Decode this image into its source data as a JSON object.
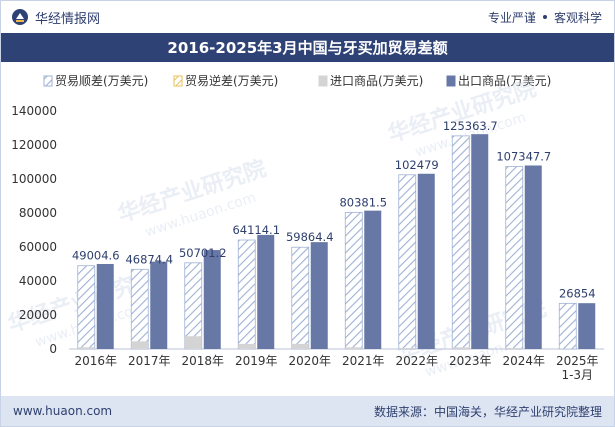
{
  "header": {
    "brand": "华经情报网",
    "tagline_left": "专业严谨",
    "tagline_right": "客观科学",
    "colors": {
      "brand": "#2e4276",
      "accent": "#2e3f6e"
    }
  },
  "footer": {
    "url": "www.huaon.com",
    "source": "数据来源：中国海关，华经产业研究院整理"
  },
  "watermark": {
    "text": "华经产业研究院",
    "url": "www.huaon.com"
  },
  "chart_data": {
    "type": "bar",
    "title": "2016-2025年3月中国与牙买加贸易差额",
    "categories": [
      "2016年",
      "2017年",
      "2018年",
      "2019年",
      "2020年",
      "2021年",
      "2022年",
      "2023年",
      "2024年",
      "2025年\n1-3月"
    ],
    "series": [
      {
        "name": "贸易顺差(万美元)",
        "values": [
          49004.6,
          46874.4,
          50701.2,
          64114.1,
          59864.4,
          80381.5,
          102479,
          125363.7,
          107347.7,
          26854
        ],
        "color": "#ffffff",
        "pattern": "hatch-blue"
      },
      {
        "name": "贸易逆差(万美元)",
        "values": [
          0,
          0,
          0,
          0,
          0,
          0,
          0,
          0,
          0,
          0
        ],
        "color": "#f5d98c",
        "pattern": "hatch-yellow"
      },
      {
        "name": "进口商品(万美元)",
        "values": [
          1000,
          4500,
          7500,
          3000,
          3000,
          1000,
          600,
          1000,
          600,
          100
        ],
        "color": "#d4d4d4"
      },
      {
        "name": "出口商品(万美元)",
        "values": [
          50004.6,
          51374.4,
          58201.2,
          67114.1,
          62864.4,
          81381.5,
          103079,
          126363.7,
          107947.7,
          26954
        ],
        "color": "#6878a6"
      }
    ],
    "data_labels": [
      "49004.6",
      "46874.4",
      "50701.2",
      "64114.1",
      "59864.4",
      "80381.5",
      "102479",
      "125363.7",
      "107347.7",
      "26854"
    ],
    "ylim": [
      0,
      140000
    ],
    "yticks": [
      0,
      20000,
      40000,
      60000,
      80000,
      100000,
      120000,
      140000
    ],
    "xlabel": "",
    "ylabel": "",
    "grid": false,
    "legend_position": "top"
  }
}
